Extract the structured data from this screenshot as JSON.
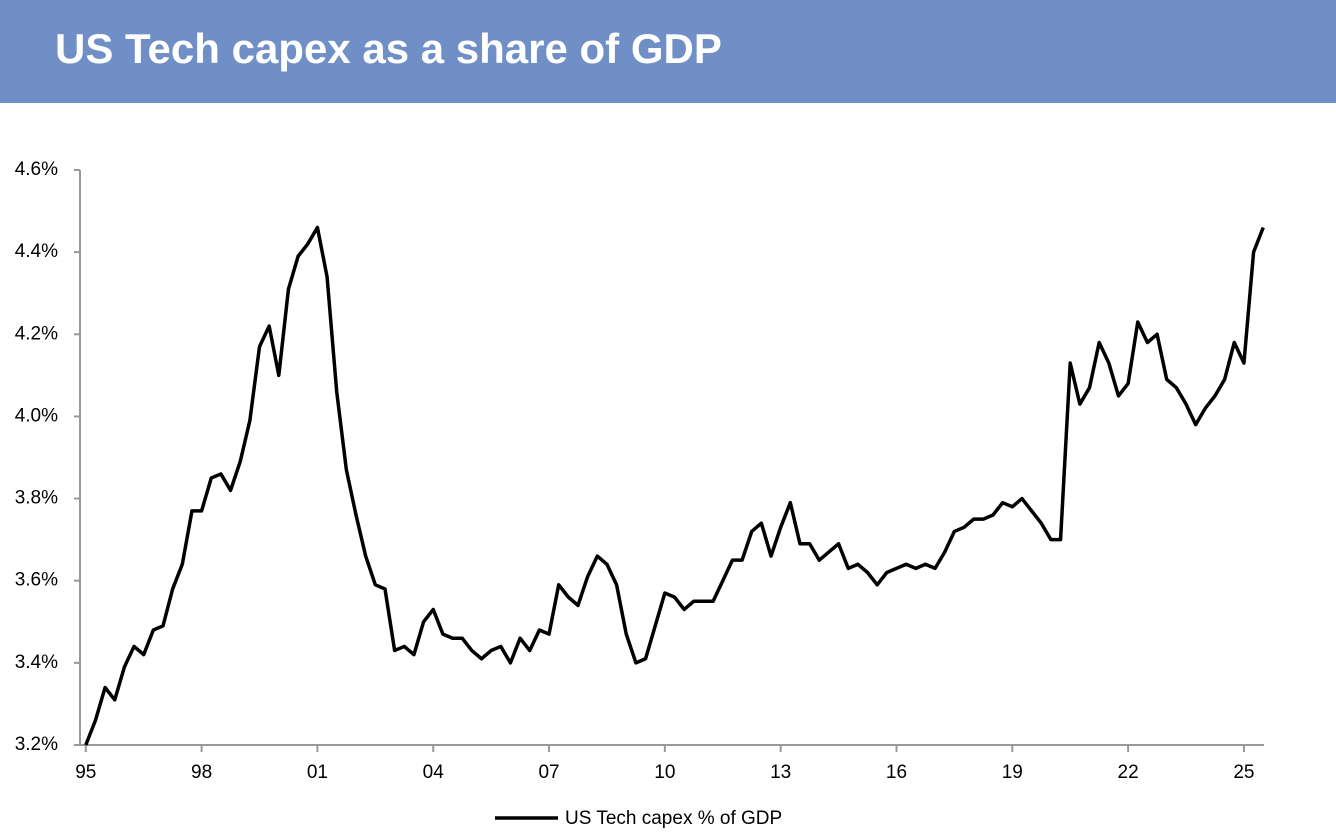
{
  "chart_data": {
    "type": "line",
    "title": "US Tech capex as a share of GDP",
    "x": [
      1995.0,
      1995.25,
      1995.5,
      1995.75,
      1996.0,
      1996.25,
      1996.5,
      1996.75,
      1997.0,
      1997.25,
      1997.5,
      1997.75,
      1998.0,
      1998.25,
      1998.5,
      1998.75,
      1999.0,
      1999.25,
      1999.5,
      1999.75,
      2000.0,
      2000.25,
      2000.5,
      2000.75,
      2001.0,
      2001.25,
      2001.5,
      2001.75,
      2002.0,
      2002.25,
      2002.5,
      2002.75,
      2003.0,
      2003.25,
      2003.5,
      2003.75,
      2004.0,
      2004.25,
      2004.5,
      2004.75,
      2005.0,
      2005.25,
      2005.5,
      2005.75,
      2006.0,
      2006.25,
      2006.5,
      2006.75,
      2007.0,
      2007.25,
      2007.5,
      2007.75,
      2008.0,
      2008.25,
      2008.5,
      2008.75,
      2009.0,
      2009.25,
      2009.5,
      2009.75,
      2010.0,
      2010.25,
      2010.5,
      2010.75,
      2011.0,
      2011.25,
      2011.5,
      2011.75,
      2012.0,
      2012.25,
      2012.5,
      2012.75,
      2013.0,
      2013.25,
      2013.5,
      2013.75,
      2014.0,
      2014.25,
      2014.5,
      2014.75,
      2015.0,
      2015.25,
      2015.5,
      2015.75,
      2016.0,
      2016.25,
      2016.5,
      2016.75,
      2017.0,
      2017.25,
      2017.5,
      2017.75,
      2018.0,
      2018.25,
      2018.5,
      2018.75,
      2019.0,
      2019.25,
      2019.5,
      2019.75,
      2020.0,
      2020.25,
      2020.5,
      2020.75,
      2021.0,
      2021.25,
      2021.5,
      2021.75,
      2022.0,
      2022.25,
      2022.5,
      2022.75,
      2023.0,
      2023.25,
      2023.5,
      2023.75,
      2024.0,
      2024.25,
      2024.5,
      2024.75,
      2025.0,
      2025.25,
      2025.5
    ],
    "series": [
      {
        "name": "US Tech capex % of GDP",
        "color": "#000000",
        "values": [
          3.2,
          3.26,
          3.34,
          3.31,
          3.39,
          3.44,
          3.42,
          3.48,
          3.49,
          3.58,
          3.64,
          3.77,
          3.77,
          3.85,
          3.86,
          3.82,
          3.89,
          3.99,
          4.17,
          4.22,
          4.1,
          4.31,
          4.39,
          4.42,
          4.46,
          4.34,
          4.06,
          3.87,
          3.76,
          3.66,
          3.59,
          3.58,
          3.43,
          3.44,
          3.42,
          3.5,
          3.53,
          3.47,
          3.46,
          3.46,
          3.43,
          3.41,
          3.43,
          3.44,
          3.4,
          3.46,
          3.43,
          3.48,
          3.47,
          3.59,
          3.56,
          3.54,
          3.61,
          3.66,
          3.64,
          3.59,
          3.47,
          3.4,
          3.41,
          3.49,
          3.57,
          3.56,
          3.53,
          3.55,
          3.55,
          3.55,
          3.6,
          3.65,
          3.65,
          3.72,
          3.74,
          3.66,
          3.73,
          3.79,
          3.69,
          3.69,
          3.65,
          3.67,
          3.69,
          3.63,
          3.64,
          3.62,
          3.59,
          3.62,
          3.63,
          3.64,
          3.63,
          3.64,
          3.63,
          3.67,
          3.72,
          3.73,
          3.75,
          3.75,
          3.76,
          3.79,
          3.78,
          3.8,
          3.77,
          3.74,
          3.7,
          3.7,
          4.13,
          4.03,
          4.07,
          4.18,
          4.13,
          4.05,
          4.08,
          4.23,
          4.18,
          4.2,
          4.09,
          4.07,
          4.03,
          3.98,
          4.02,
          4.05,
          4.09,
          4.18,
          4.13,
          4.4,
          4.46
        ]
      }
    ],
    "xlim": [
      1994.85,
      2025.52
    ],
    "xticks": [
      {
        "value": 1995,
        "label": "95"
      },
      {
        "value": 1998,
        "label": "98"
      },
      {
        "value": 2001,
        "label": "01"
      },
      {
        "value": 2004,
        "label": "04"
      },
      {
        "value": 2007,
        "label": "07"
      },
      {
        "value": 2010,
        "label": "10"
      },
      {
        "value": 2013,
        "label": "13"
      },
      {
        "value": 2016,
        "label": "16"
      },
      {
        "value": 2019,
        "label": "19"
      },
      {
        "value": 2022,
        "label": "22"
      },
      {
        "value": 2025,
        "label": "25"
      }
    ],
    "ylim": [
      3.2,
      4.6
    ],
    "yticks": [
      {
        "value": 3.2,
        "label": "3.2%"
      },
      {
        "value": 3.4,
        "label": "3.4%"
      },
      {
        "value": 3.6,
        "label": "3.6%"
      },
      {
        "value": 3.8,
        "label": "3.8%"
      },
      {
        "value": 4.0,
        "label": "4.0%"
      },
      {
        "value": 4.2,
        "label": "4.2%"
      },
      {
        "value": 4.4,
        "label": "4.4%"
      },
      {
        "value": 4.6,
        "label": "4.6%"
      }
    ],
    "grid": false,
    "legend": "bottom"
  }
}
